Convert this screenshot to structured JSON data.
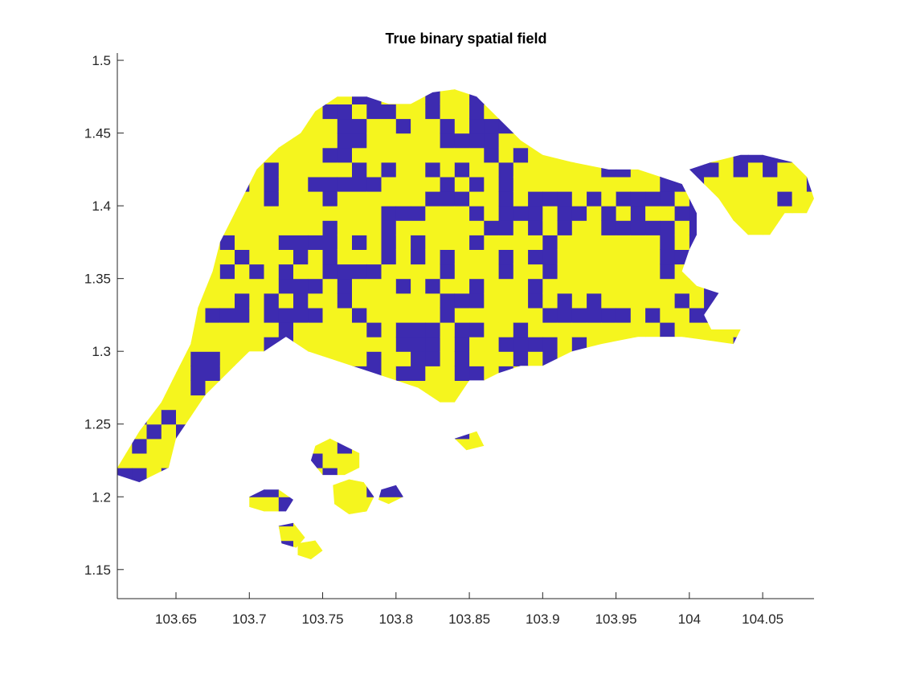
{
  "chart_data": {
    "type": "heatmap",
    "subtype": "binary spatial field map (land region with islands)",
    "title": "True binary spatial field",
    "xlabel": "",
    "ylabel": "",
    "xlim": [
      103.61,
      104.085
    ],
    "ylim": [
      1.13,
      1.505
    ],
    "x_ticks": [
      103.65,
      103.7,
      103.75,
      103.8,
      103.85,
      103.9,
      103.95,
      104.0,
      104.05
    ],
    "x_tick_labels": [
      "103.65",
      "103.7",
      "103.75",
      "103.8",
      "103.85",
      "103.9",
      "103.95",
      "104",
      "104.05"
    ],
    "y_ticks": [
      1.15,
      1.2,
      1.25,
      1.3,
      1.35,
      1.4,
      1.45,
      1.5
    ],
    "y_tick_labels": [
      "1.15",
      "1.2",
      "1.25",
      "1.3",
      "1.35",
      "1.4",
      "1.45",
      "1.5"
    ],
    "grid": false,
    "box": false,
    "classes": [
      {
        "value": 0,
        "color": "#3d2bb0"
      },
      {
        "value": 1,
        "color": "#f5f51e"
      }
    ],
    "cell_size_deg": 0.01,
    "main_island_outline_lonlat": [
      [
        103.61,
        1.22
      ],
      [
        103.625,
        1.245
      ],
      [
        103.64,
        1.265
      ],
      [
        103.65,
        1.285
      ],
      [
        103.66,
        1.305
      ],
      [
        103.665,
        1.33
      ],
      [
        103.675,
        1.355
      ],
      [
        103.68,
        1.375
      ],
      [
        103.69,
        1.395
      ],
      [
        103.7,
        1.415
      ],
      [
        103.705,
        1.425
      ],
      [
        103.72,
        1.44
      ],
      [
        103.735,
        1.45
      ],
      [
        103.745,
        1.465
      ],
      [
        103.76,
        1.475
      ],
      [
        103.78,
        1.475
      ],
      [
        103.795,
        1.47
      ],
      [
        103.81,
        1.47
      ],
      [
        103.825,
        1.478
      ],
      [
        103.84,
        1.48
      ],
      [
        103.855,
        1.475
      ],
      [
        103.87,
        1.46
      ],
      [
        103.885,
        1.445
      ],
      [
        103.9,
        1.435
      ],
      [
        103.92,
        1.43
      ],
      [
        103.945,
        1.425
      ],
      [
        103.965,
        1.425
      ],
      [
        103.98,
        1.42
      ],
      [
        103.995,
        1.415
      ],
      [
        104.005,
        1.395
      ],
      [
        104.005,
        1.38
      ],
      [
        104.0,
        1.37
      ],
      [
        103.995,
        1.355
      ],
      [
        104.005,
        1.345
      ],
      [
        104.02,
        1.34
      ],
      [
        104.01,
        1.325
      ],
      [
        104.015,
        1.315
      ],
      [
        104.035,
        1.315
      ],
      [
        104.03,
        1.305
      ],
      [
        103.995,
        1.31
      ],
      [
        103.965,
        1.31
      ],
      [
        103.94,
        1.305
      ],
      [
        103.92,
        1.3
      ],
      [
        103.9,
        1.29
      ],
      [
        103.885,
        1.29
      ],
      [
        103.87,
        1.285
      ],
      [
        103.86,
        1.28
      ],
      [
        103.85,
        1.28
      ],
      [
        103.84,
        1.265
      ],
      [
        103.83,
        1.265
      ],
      [
        103.815,
        1.275
      ],
      [
        103.8,
        1.28
      ],
      [
        103.785,
        1.285
      ],
      [
        103.77,
        1.29
      ],
      [
        103.755,
        1.295
      ],
      [
        103.74,
        1.3
      ],
      [
        103.725,
        1.31
      ],
      [
        103.71,
        1.3
      ],
      [
        103.7,
        1.3
      ],
      [
        103.69,
        1.29
      ],
      [
        103.68,
        1.28
      ],
      [
        103.67,
        1.27
      ],
      [
        103.66,
        1.255
      ],
      [
        103.65,
        1.24
      ],
      [
        103.645,
        1.22
      ],
      [
        103.625,
        1.21
      ],
      [
        103.61,
        1.215
      ]
    ],
    "islands_outline_lonlat": [
      [
        [
          104.0,
          1.425
        ],
        [
          104.015,
          1.43
        ],
        [
          104.035,
          1.435
        ],
        [
          104.05,
          1.435
        ],
        [
          104.07,
          1.43
        ],
        [
          104.08,
          1.42
        ],
        [
          104.085,
          1.405
        ],
        [
          104.08,
          1.395
        ],
        [
          104.065,
          1.395
        ],
        [
          104.055,
          1.38
        ],
        [
          104.04,
          1.38
        ],
        [
          104.03,
          1.39
        ],
        [
          104.02,
          1.405
        ],
        [
          104.01,
          1.415
        ]
      ],
      [
        [
          103.745,
          1.235
        ],
        [
          103.755,
          1.24
        ],
        [
          103.765,
          1.235
        ],
        [
          103.775,
          1.23
        ],
        [
          103.775,
          1.22
        ],
        [
          103.765,
          1.215
        ],
        [
          103.75,
          1.215
        ],
        [
          103.742,
          1.225
        ]
      ],
      [
        [
          103.7,
          1.2
        ],
        [
          103.71,
          1.205
        ],
        [
          103.72,
          1.205
        ],
        [
          103.73,
          1.198
        ],
        [
          103.725,
          1.19
        ],
        [
          103.71,
          1.19
        ],
        [
          103.7,
          1.193
        ]
      ],
      [
        [
          103.757,
          1.208
        ],
        [
          103.768,
          1.212
        ],
        [
          103.778,
          1.21
        ],
        [
          103.785,
          1.2
        ],
        [
          103.78,
          1.19
        ],
        [
          103.768,
          1.188
        ],
        [
          103.758,
          1.195
        ]
      ],
      [
        [
          103.72,
          1.18
        ],
        [
          103.73,
          1.182
        ],
        [
          103.738,
          1.172
        ],
        [
          103.732,
          1.165
        ],
        [
          103.722,
          1.168
        ]
      ],
      [
        [
          103.733,
          1.168
        ],
        [
          103.745,
          1.17
        ],
        [
          103.75,
          1.163
        ],
        [
          103.742,
          1.157
        ],
        [
          103.733,
          1.16
        ]
      ],
      [
        [
          103.79,
          1.205
        ],
        [
          103.8,
          1.208
        ],
        [
          103.805,
          1.2
        ],
        [
          103.795,
          1.195
        ],
        [
          103.788,
          1.198
        ]
      ],
      [
        [
          103.84,
          1.24
        ],
        [
          103.855,
          1.245
        ],
        [
          103.86,
          1.235
        ],
        [
          103.848,
          1.232
        ]
      ]
    ]
  }
}
